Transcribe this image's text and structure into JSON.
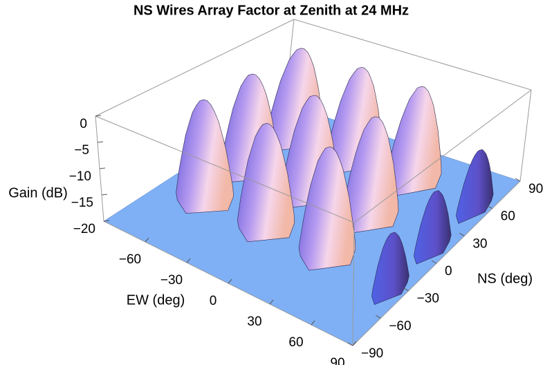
{
  "chart_data": {
    "type": "surface",
    "title": "NS Wires Array Factor at Zenith at 24 MHz",
    "x_label": "EW (deg)",
    "y_label": "NS (deg)",
    "z_label": "Gain (dB)",
    "xlim": [
      -90,
      90
    ],
    "ylim": [
      -90,
      90
    ],
    "zlim": [
      -20,
      0
    ],
    "xticks": [
      {
        "value": -60,
        "label": "−60"
      },
      {
        "value": -30,
        "label": "−30"
      },
      0,
      30,
      60,
      90
    ],
    "yticks": [
      {
        "value": -90,
        "label": "−90"
      },
      {
        "value": -60,
        "label": "−60"
      },
      {
        "value": -30,
        "label": "−30"
      },
      0,
      30,
      60,
      90
    ],
    "zticks": [
      0,
      {
        "value": -5,
        "label": "−5"
      },
      {
        "value": -10,
        "label": "−10"
      },
      {
        "value": -15,
        "label": "−15"
      },
      {
        "value": -20,
        "label": "−20"
      }
    ],
    "floor_color": "#7fb0f5"
  }
}
